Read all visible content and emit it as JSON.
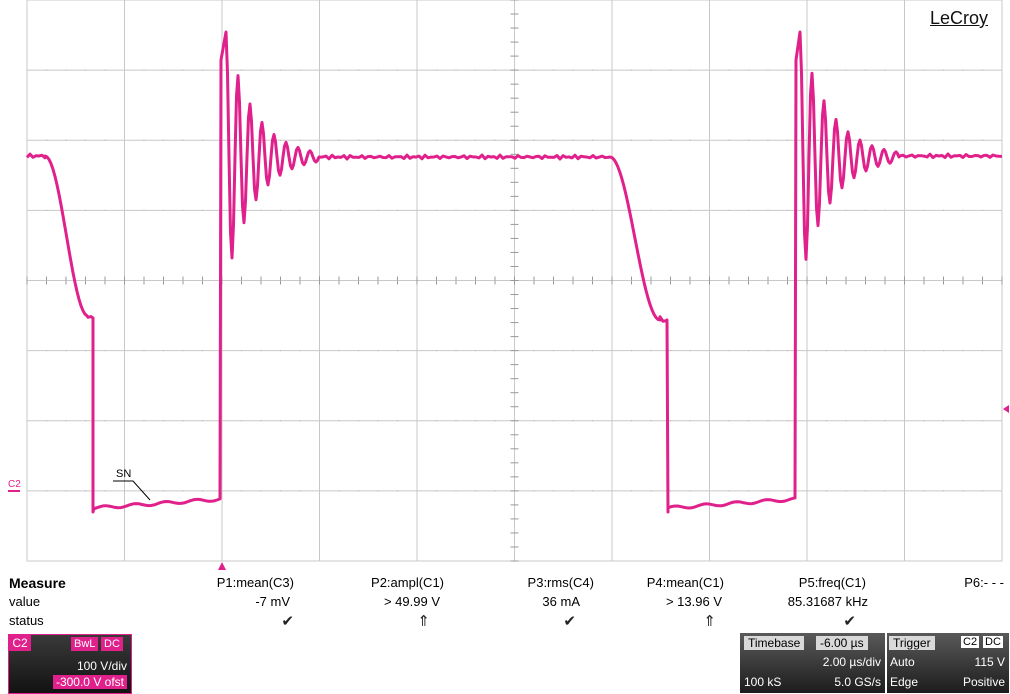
{
  "brand": "LeCroy",
  "colors": {
    "trace": "#e0208b",
    "grid": "#c8c8c8",
    "grid_dots": "#b0b0b0",
    "background": "#ffffff"
  },
  "markers": {
    "channel_label": "C2",
    "trace_annotation": "SN",
    "trigger_position_icon": "triangle-up-icon",
    "trigger_level_icon": "triangle-left-icon"
  },
  "measure": {
    "header": "Measure",
    "row_labels": {
      "value": "value",
      "status": "status"
    },
    "params": [
      {
        "name": "P1:mean(C3)",
        "value": "-7 mV",
        "status": "check-icon",
        "status_glyph": "✔"
      },
      {
        "name": "P2:ampl(C1)",
        "value": "> 49.99 V",
        "status": "double-up-arrow-icon",
        "status_glyph": "⇑"
      },
      {
        "name": "P3:rms(C4)",
        "value": "36 mA",
        "status": "check-icon",
        "status_glyph": "✔"
      },
      {
        "name": "P4:mean(C1)",
        "value": "> 13.96 V",
        "status": "double-up-arrow-icon",
        "status_glyph": "⇑"
      },
      {
        "name": "P5:freq(C1)",
        "value": "85.31687 kHz",
        "status": "check-icon",
        "status_glyph": "✔"
      },
      {
        "name": "P6:- - -",
        "value": "",
        "status": "",
        "status_glyph": ""
      }
    ]
  },
  "channel": {
    "name": "C2",
    "bwl": "BwL",
    "coupling": "DC",
    "scale": "100 V/div",
    "offset": "-300.0 V ofst"
  },
  "timebase": {
    "label": "Timebase",
    "delay": "-6.00 µs",
    "scale": "2.00 µs/div",
    "samples": "100 kS",
    "rate": "5.0 GS/s"
  },
  "trigger": {
    "label": "Trigger",
    "source": "C2",
    "coupling": "DC",
    "mode": "Auto",
    "level": "115 V",
    "type": "Edge",
    "slope": "Positive"
  }
}
